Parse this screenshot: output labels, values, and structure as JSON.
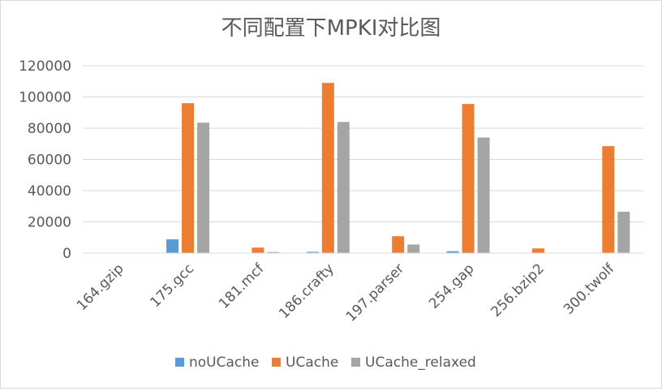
{
  "chart_data": {
    "type": "bar",
    "title": "不同配置下MPKI对比图",
    "xlabel": "",
    "ylabel": "",
    "categories": [
      "164.gzip",
      "175.gcc",
      "181.mcf",
      "186.crafty",
      "197.parser",
      "254.gap",
      "256.bzip2",
      "300.twolf"
    ],
    "series": [
      {
        "name": "noUCache",
        "color": "#5B9BD5",
        "values": [
          0,
          8800,
          0,
          800,
          0,
          1200,
          0,
          0
        ]
      },
      {
        "name": "UCache",
        "color": "#ED7D31",
        "values": [
          0,
          96000,
          3500,
          109000,
          10800,
          95500,
          3000,
          68500
        ]
      },
      {
        "name": "UCache_relaxed",
        "color": "#A5A5A5",
        "values": [
          0,
          83500,
          700,
          84000,
          5500,
          74000,
          0,
          26500
        ]
      }
    ],
    "ylim": [
      0,
      120000
    ],
    "yticks": [
      "0",
      "20000",
      "40000",
      "60000",
      "80000",
      "100000",
      "120000"
    ],
    "grid": true,
    "legend_position": "bottom"
  }
}
